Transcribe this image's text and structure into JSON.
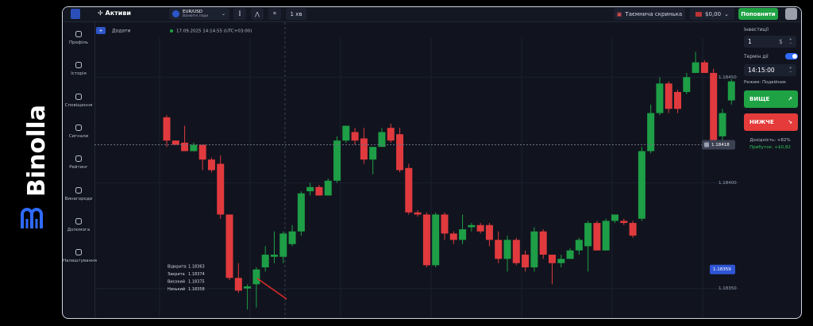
{
  "brand": "Binolla",
  "topbar": {
    "assets": "Активи",
    "pair": "EUR/USD",
    "pair_type": "Валютні пари",
    "timeframe": "1 хв",
    "mystery_box": "Таємнича скринька",
    "balance": "$0,00",
    "deposit": "Поповнити"
  },
  "sidebar": [
    "Профіль",
    "Історія",
    "Сповіщення",
    "Сигнали",
    "Рейтинг",
    "Винагороди",
    "Допомога",
    "Налаштування"
  ],
  "chart": {
    "add": "Додати",
    "timestamp": "17.09.2025 14:14:55 (UTC+03:00)",
    "type": "candlestick",
    "open": [
      1.18431,
      1.1842,
      1.18419,
      1.18415,
      1.18418,
      1.18411,
      1.18409,
      1.18385,
      1.18355,
      1.1835,
      1.18352,
      1.1836,
      1.18365,
      1.18365,
      1.18371,
      1.18377,
      1.18396,
      1.18398,
      1.18394,
      1.18401,
      1.1842,
      1.18424,
      1.18421,
      1.18411,
      1.18417,
      1.18426,
      1.18423,
      1.18407,
      1.18386,
      1.18385,
      1.18361,
      1.18385,
      1.18376,
      1.18373,
      1.18379,
      1.1838,
      1.1838,
      1.18373,
      1.18364,
      1.18373,
      1.18366,
      1.1836,
      1.18377,
      1.18366,
      1.18362,
      1.18364,
      1.18368,
      1.1837,
      1.18381,
      1.18368,
      1.18382,
      1.18382,
      1.18381,
      1.18383,
      1.18415,
      1.18433,
      1.18447,
      1.18443,
      1.18443,
      1.18452,
      1.18457,
      1.18452,
      1.18422,
      1.18439
    ],
    "high": [
      1.18432,
      1.1842,
      1.18427,
      1.18419,
      1.18418,
      1.18412,
      1.18413,
      1.18385,
      1.18362,
      1.18352,
      1.1836,
      1.1837,
      1.18377,
      1.18377,
      1.1838,
      1.18396,
      1.184,
      1.18399,
      1.18402,
      1.18422,
      1.18427,
      1.18426,
      1.18426,
      1.18417,
      1.18426,
      1.18428,
      1.18426,
      1.18409,
      1.18387,
      1.18386,
      1.18386,
      1.18386,
      1.18377,
      1.18385,
      1.18381,
      1.18381,
      1.18381,
      1.18377,
      1.18375,
      1.18374,
      1.18368,
      1.18379,
      1.18378,
      1.18366,
      1.18366,
      1.18369,
      1.18374,
      1.18382,
      1.18382,
      1.18383,
      1.18385,
      1.18383,
      1.18382,
      1.18417,
      1.18437,
      1.1845,
      1.18448,
      1.18444,
      1.18452,
      1.18462,
      1.18458,
      1.18454,
      1.18435,
      1.18449
    ],
    "low": [
      1.18417,
      1.18418,
      1.18415,
      1.18415,
      1.18406,
      1.18405,
      1.18383,
      1.18354,
      1.18348,
      1.1834,
      1.18341,
      1.18358,
      1.18362,
      1.18362,
      1.1837,
      1.18375,
      1.18394,
      1.18394,
      1.18394,
      1.184,
      1.18419,
      1.18418,
      1.18409,
      1.18404,
      1.18417,
      1.18419,
      1.18405,
      1.18385,
      1.18384,
      1.1836,
      1.1836,
      1.18373,
      1.18371,
      1.18371,
      1.18377,
      1.18376,
      1.1837,
      1.18362,
      1.18358,
      1.18361,
      1.18358,
      1.18358,
      1.18364,
      1.18352,
      1.1836,
      1.18364,
      1.18366,
      1.18358,
      1.18368,
      1.18368,
      1.18381,
      1.1838,
      1.18374,
      1.18382,
      1.18414,
      1.18432,
      1.18433,
      1.18433,
      1.18442,
      1.18452,
      1.18452,
      1.18418,
      1.18417,
      1.18437
    ],
    "close": [
      1.1842,
      1.18418,
      1.18415,
      1.18418,
      1.18411,
      1.18406,
      1.18385,
      1.18355,
      1.18349,
      1.18351,
      1.18359,
      1.18366,
      1.18366,
      1.18376,
      1.18377,
      1.18395,
      1.18398,
      1.18394,
      1.18401,
      1.1842,
      1.18427,
      1.1842,
      1.18411,
      1.18417,
      1.18424,
      1.1842,
      1.18406,
      1.18386,
      1.18385,
      1.18361,
      1.18385,
      1.18376,
      1.18373,
      1.18378,
      1.1838,
      1.18377,
      1.18373,
      1.18364,
      1.18373,
      1.18362,
      1.1836,
      1.18377,
      1.18366,
      1.18362,
      1.18364,
      1.18368,
      1.18373,
      1.18381,
      1.18368,
      1.18382,
      1.18385,
      1.18381,
      1.18375,
      1.18415,
      1.18433,
      1.18447,
      1.18435,
      1.18435,
      1.1845,
      1.18457,
      1.18452,
      1.1842,
      1.18433,
      1.18448
    ],
    "up_color": "#1e9e46",
    "down_color": "#e03a3e",
    "ylim": [
      1.18336,
      1.18476
    ],
    "yticks": [
      {
        "value": 1.1845,
        "label": "1.18450"
      },
      {
        "value": 1.184,
        "label": "1.18400"
      },
      {
        "value": 1.1835,
        "label": "1.18350"
      }
    ],
    "grid": true,
    "current_price": 1.18418,
    "marker_price": 1.18359,
    "ohlc_box": [
      [
        "Відкрита",
        1.18363
      ],
      [
        "Закрита",
        1.18374
      ],
      [
        "Високий",
        1.18375
      ],
      [
        "Низький",
        1.18358
      ]
    ]
  },
  "panel": {
    "investment_label": "Інвестиції",
    "investment": 1,
    "currency": "$",
    "expiry_label": "Термін дії",
    "expiry": "14:15:00",
    "mode": "Режим: Подвійник",
    "higher": "ВИЩЕ",
    "lower": "НИЖЧЕ",
    "yield": "Дохідність: +82%",
    "profit": "Прибуток: +$0,82"
  }
}
